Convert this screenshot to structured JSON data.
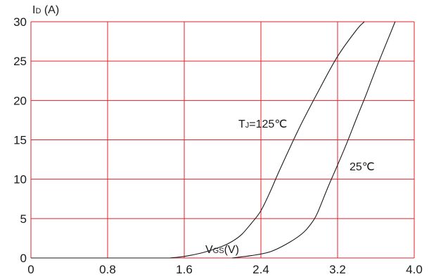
{
  "chart_data": {
    "type": "line",
    "ylabel": {
      "main": "I",
      "sub": "D",
      "unit": " (A)"
    },
    "xlabel": {
      "main": "V",
      "sub": "GS",
      "unit": "(V)"
    },
    "xlim": [
      0,
      4.0
    ],
    "ylim": [
      0,
      30
    ],
    "x_ticks": [
      0,
      0.8,
      1.6,
      2.4,
      3.2,
      4.0
    ],
    "x_tick_labels": [
      "0",
      "0.8",
      "1.6",
      "2.4",
      "3.2",
      "4.0"
    ],
    "y_ticks": [
      0,
      5,
      10,
      15,
      20,
      25,
      30
    ],
    "y_tick_labels": [
      "0",
      "5",
      "10",
      "15",
      "20",
      "25",
      "30"
    ],
    "grid": true,
    "grid_color": "#e0202a",
    "line_color": "#1a1a1a",
    "series": [
      {
        "label": {
          "main": "T",
          "sub": "J",
          "rest": "=125℃"
        },
        "points": [
          [
            1.45,
            0
          ],
          [
            1.6,
            0.2
          ],
          [
            1.8,
            0.7
          ],
          [
            2.0,
            1.5
          ],
          [
            2.1,
            2.1
          ],
          [
            2.2,
            3.0
          ],
          [
            2.3,
            4.4
          ],
          [
            2.4,
            6.0
          ],
          [
            2.5,
            8.5
          ],
          [
            2.6,
            11.3
          ],
          [
            2.8,
            16.5
          ],
          [
            3.0,
            21.2
          ],
          [
            3.2,
            25.6
          ],
          [
            3.4,
            29.0
          ],
          [
            3.48,
            30.0
          ]
        ]
      },
      {
        "label": {
          "main": "",
          "sub": "",
          "rest": "25℃"
        },
        "points": [
          [
            2.1,
            0
          ],
          [
            2.3,
            0.3
          ],
          [
            2.5,
            0.8
          ],
          [
            2.7,
            2.0
          ],
          [
            2.85,
            3.3
          ],
          [
            2.95,
            4.8
          ],
          [
            3.0,
            6.0
          ],
          [
            3.1,
            9.0
          ],
          [
            3.2,
            11.8
          ],
          [
            3.3,
            14.7
          ],
          [
            3.4,
            17.8
          ],
          [
            3.5,
            20.8
          ],
          [
            3.6,
            24.0
          ],
          [
            3.7,
            27.0
          ],
          [
            3.8,
            30.0
          ]
        ]
      }
    ]
  }
}
